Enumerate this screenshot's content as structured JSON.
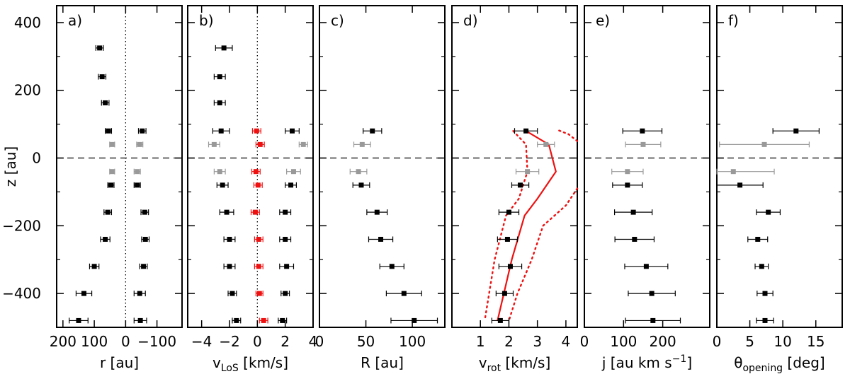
{
  "chart_data": {
    "type": "scatter",
    "shared_y": {
      "label": "z [au]",
      "ylim": [
        -500,
        450
      ],
      "ticks": [
        400,
        200,
        0,
        -200,
        -400
      ],
      "tick_labels": [
        "400",
        "200",
        "0",
        "−200",
        "−400"
      ]
    },
    "panels": [
      {
        "label": "a)",
        "xlabel_main": "r [au]",
        "xlim": [
          220,
          -180
        ],
        "xticks": [
          200,
          100,
          0,
          -100
        ],
        "xtick_labels": [
          "200",
          "100",
          "0",
          "−100"
        ],
        "vline": 0,
        "series": [
          {
            "color": "#000000",
            "points": [
              {
                "z": 325,
                "x": 83,
                "xerr": 12
              },
              {
                "z": 240,
                "x": 75,
                "xerr": 12
              },
              {
                "z": 163,
                "x": 65,
                "xerr": 12
              },
              {
                "z": 80,
                "x": 55,
                "xerr": 10
              },
              {
                "z": 80,
                "x": -53,
                "xerr": 12
              },
              {
                "z": -80,
                "x": 47,
                "xerr": 10
              },
              {
                "z": -80,
                "x": -37,
                "xerr": 10
              },
              {
                "z": -160,
                "x": 57,
                "xerr": 12
              },
              {
                "z": -160,
                "x": -61,
                "xerr": 12
              },
              {
                "z": -240,
                "x": 65,
                "xerr": 15
              },
              {
                "z": -240,
                "x": -63,
                "xerr": 12
              },
              {
                "z": -320,
                "x": 100,
                "xerr": 15
              },
              {
                "z": -320,
                "x": -57,
                "xerr": 12
              },
              {
                "z": -400,
                "x": 133,
                "xerr": 25
              },
              {
                "z": -400,
                "x": -45,
                "xerr": 18
              },
              {
                "z": -480,
                "x": 150,
                "xerr": 30
              },
              {
                "z": -480,
                "x": -47,
                "xerr": 20
              }
            ]
          },
          {
            "color": "#999999",
            "points": [
              {
                "z": 40,
                "x": 43,
                "xerr": 8
              },
              {
                "z": 40,
                "x": -45,
                "xerr": 10
              },
              {
                "z": -40,
                "x": 43,
                "xerr": 8
              },
              {
                "z": -40,
                "x": -37,
                "xerr": 10
              }
            ]
          }
        ]
      },
      {
        "label": "b)",
        "xlabel_main": "v",
        "xlabel_sub": "LoS",
        "xlabel_rest": " [km/s]",
        "xlim": [
          -5,
          4
        ],
        "xticks": [
          -4,
          -2,
          0,
          2,
          4
        ],
        "xtick_labels": [
          "−4",
          "−2",
          "0",
          "2",
          "4"
        ],
        "vline": 0,
        "series": [
          {
            "color": "#000000",
            "points": [
              {
                "z": 325,
                "x": -2.4,
                "xerr": 0.6
              },
              {
                "z": 240,
                "x": -2.7,
                "xerr": 0.4
              },
              {
                "z": 163,
                "x": -2.7,
                "xerr": 0.4
              },
              {
                "z": 80,
                "x": -2.6,
                "xerr": 0.6
              },
              {
                "z": 80,
                "x": 2.5,
                "xerr": 0.5
              },
              {
                "z": -80,
                "x": -2.5,
                "xerr": 0.4
              },
              {
                "z": -80,
                "x": 2.4,
                "xerr": 0.4
              },
              {
                "z": -160,
                "x": -2.2,
                "xerr": 0.5
              },
              {
                "z": -160,
                "x": 2.0,
                "xerr": 0.4
              },
              {
                "z": -240,
                "x": -2.0,
                "xerr": 0.4
              },
              {
                "z": -240,
                "x": 2.0,
                "xerr": 0.4
              },
              {
                "z": -320,
                "x": -2.0,
                "xerr": 0.4
              },
              {
                "z": -320,
                "x": 2.1,
                "xerr": 0.5
              },
              {
                "z": -400,
                "x": -1.8,
                "xerr": 0.3
              },
              {
                "z": -400,
                "x": 2.0,
                "xerr": 0.3
              },
              {
                "z": -480,
                "x": -1.5,
                "xerr": 0.3
              },
              {
                "z": -480,
                "x": 1.8,
                "xerr": 0.3
              }
            ]
          },
          {
            "color": "#999999",
            "points": [
              {
                "z": 40,
                "x": -3.1,
                "xerr": 0.4
              },
              {
                "z": 40,
                "x": 3.3,
                "xerr": 0.3
              },
              {
                "z": -40,
                "x": -2.7,
                "xerr": 0.4
              },
              {
                "z": -40,
                "x": 2.6,
                "xerr": 0.5
              }
            ]
          },
          {
            "color": "#ee1111",
            "points": [
              {
                "z": 80,
                "x": -0.05,
                "xerr": 0.3
              },
              {
                "z": 40,
                "x": 0.2,
                "xerr": 0.3
              },
              {
                "z": -40,
                "x": -0.1,
                "xerr": 0.3
              },
              {
                "z": -80,
                "x": 0.05,
                "xerr": 0.3
              },
              {
                "z": -160,
                "x": -0.15,
                "xerr": 0.3
              },
              {
                "z": -240,
                "x": 0.1,
                "xerr": 0.3
              },
              {
                "z": -320,
                "x": 0.1,
                "xerr": 0.3
              },
              {
                "z": -400,
                "x": 0.15,
                "xerr": 0.25
              },
              {
                "z": -480,
                "x": 0.45,
                "xerr": 0.3
              }
            ]
          }
        ]
      },
      {
        "label": "c)",
        "xlabel_main": "R [au]",
        "xlim": [
          0,
          135
        ],
        "xticks": [
          0,
          50,
          100
        ],
        "xtick_labels": [
          "0",
          "50",
          "100"
        ],
        "series": [
          {
            "color": "#000000",
            "points": [
              {
                "z": 80,
                "x": 57,
                "xerr": 10
              },
              {
                "z": -80,
                "x": 45,
                "xerr": 9
              },
              {
                "z": -160,
                "x": 62,
                "xerr": 11
              },
              {
                "z": -240,
                "x": 66,
                "xerr": 13
              },
              {
                "z": -320,
                "x": 78,
                "xerr": 13
              },
              {
                "z": -400,
                "x": 91,
                "xerr": 19
              },
              {
                "z": -480,
                "x": 102,
                "xerr": 25
              }
            ]
          },
          {
            "color": "#999999",
            "points": [
              {
                "z": 40,
                "x": 46,
                "xerr": 9
              },
              {
                "z": -40,
                "x": 42,
                "xerr": 9
              }
            ]
          }
        ]
      },
      {
        "label": "d)",
        "xlabel_main": "v",
        "xlabel_sub": "rot",
        "xlabel_rest": " [km/s]",
        "xlim": [
          0,
          4.4
        ],
        "xticks": [
          1,
          2,
          3,
          4
        ],
        "xtick_labels": [
          "1",
          "2",
          "3",
          "4"
        ],
        "series": [
          {
            "color": "#000000",
            "points": [
              {
                "z": 80,
                "x": 2.6,
                "xerr": 0.4
              },
              {
                "z": -80,
                "x": 2.4,
                "xerr": 0.3
              },
              {
                "z": -160,
                "x": 2.0,
                "xerr": 0.35
              },
              {
                "z": -240,
                "x": 1.95,
                "xerr": 0.35
              },
              {
                "z": -320,
                "x": 2.05,
                "xerr": 0.4
              },
              {
                "z": -400,
                "x": 1.85,
                "xerr": 0.3
              },
              {
                "z": -480,
                "x": 1.7,
                "xerr": 0.3
              }
            ]
          },
          {
            "color": "#999999",
            "points": [
              {
                "z": 40,
                "x": 3.3,
                "xerr": 0.3
              },
              {
                "z": -40,
                "x": 2.65,
                "xerr": 0.4
              }
            ]
          }
        ],
        "curves": [
          {
            "color": "#ee1111",
            "style": "solid",
            "points": [
              [
                2.6,
                80
              ],
              [
                3.4,
                40
              ],
              [
                3.65,
                -40
              ],
              [
                3.0,
                -120
              ],
              [
                2.55,
                -170
              ],
              [
                2.1,
                -300
              ],
              [
                1.6,
                -480
              ]
            ]
          },
          {
            "color": "#ee1111",
            "style": "dotted",
            "points": [
              [
                2.15,
                80
              ],
              [
                2.6,
                40
              ],
              [
                2.65,
                -40
              ],
              [
                2.35,
                -120
              ],
              [
                1.9,
                -170
              ],
              [
                1.5,
                -300
              ],
              [
                1.15,
                -480
              ]
            ]
          },
          {
            "color": "#ee1111",
            "style": "dotted",
            "points": [
              [
                4.4,
                50
              ],
              [
                4.1,
                70
              ],
              [
                3.65,
                85
              ]
            ]
          },
          {
            "color": "#ee1111",
            "style": "dotted",
            "points": [
              [
                4.4,
                -90
              ],
              [
                4.0,
                -140
              ],
              [
                3.2,
                -200
              ],
              [
                2.8,
                -300
              ],
              [
                2.3,
                -400
              ],
              [
                2.0,
                -480
              ]
            ]
          }
        ]
      },
      {
        "label": "e)",
        "xlabel_main": "j [au km s",
        "xlabel_sup": "−1",
        "xlabel_rest": "]",
        "xlim": [
          0,
          320
        ],
        "xticks": [
          0,
          100,
          200
        ],
        "xtick_labels": [
          "0",
          "100",
          "200"
        ],
        "series": [
          {
            "color": "#000000",
            "points": [
              {
                "z": 80,
                "x": 148,
                "xerr": 50
              },
              {
                "z": -80,
                "x": 110,
                "xerr": 38
              },
              {
                "z": -160,
                "x": 125,
                "xerr": 48
              },
              {
                "z": -240,
                "x": 128,
                "xerr": 50
              },
              {
                "z": -320,
                "x": 158,
                "xerr": 55
              },
              {
                "z": -400,
                "x": 172,
                "xerr": 60
              },
              {
                "z": -480,
                "x": 175,
                "xerr": 70
              }
            ]
          },
          {
            "color": "#999999",
            "points": [
              {
                "z": 40,
                "x": 150,
                "xerr": 45
              },
              {
                "z": -40,
                "x": 110,
                "xerr": 40
              }
            ]
          }
        ]
      },
      {
        "label": "f)",
        "xlabel_main": "θ",
        "xlabel_sub": "opening",
        "xlabel_rest": " [deg]",
        "xlim": [
          0,
          19
        ],
        "xticks": [
          0,
          5,
          10,
          15
        ],
        "xtick_labels": [
          "0",
          "5",
          "10",
          "15"
        ],
        "series": [
          {
            "color": "#000000",
            "points": [
              {
                "z": 80,
                "x": 12,
                "xerr": 3.5
              },
              {
                "z": -80,
                "x": 3.5,
                "xerr": 3.5
              },
              {
                "z": -160,
                "x": 7.8,
                "xerr": 1.8
              },
              {
                "z": -240,
                "x": 6.2,
                "xerr": 1.5
              },
              {
                "z": -320,
                "x": 6.8,
                "xerr": 1.0
              },
              {
                "z": -400,
                "x": 7.3,
                "xerr": 1.2
              },
              {
                "z": -480,
                "x": 7.3,
                "xerr": 1.3
              }
            ]
          },
          {
            "color": "#999999",
            "points": [
              {
                "z": 40,
                "x": 7.2,
                "xerr": 6.8
              },
              {
                "z": -40,
                "x": 2.5,
                "xerr": 6.2
              }
            ]
          }
        ]
      }
    ]
  }
}
